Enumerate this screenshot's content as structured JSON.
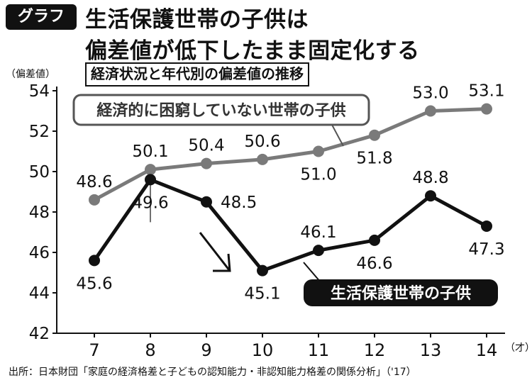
{
  "badge": "グラフ",
  "title_line1": "生活保護世帯の子供は",
  "title_line2": "偏差値が低下したまま固定化する",
  "subtitle": "経済状況と年代別の偏差値の推移",
  "y_unit": "（偏差値）",
  "x_unit": "（才）",
  "source": "出所：日本財団「家庭の経済格差と子どもの認知能力・非認知能力格差の関係分析」（'17）",
  "colors": {
    "series_gray": "#7a7a7a",
    "series_black": "#111111"
  },
  "chart_data": {
    "type": "line",
    "x": [
      7,
      8,
      9,
      10,
      11,
      12,
      13,
      14
    ],
    "ylim": [
      42,
      54
    ],
    "yticks": [
      42,
      44,
      46,
      48,
      50,
      52,
      54
    ],
    "grid": false,
    "series": [
      {
        "name": "経済的に困窮していない世帯の子供",
        "values": [
          48.6,
          50.1,
          50.4,
          50.6,
          51.0,
          51.8,
          53.0,
          53.1
        ],
        "label_pos": [
          "above",
          "above",
          "above",
          "above",
          "below",
          "below",
          "above",
          "above"
        ]
      },
      {
        "name": "生活保護世帯の子供",
        "values": [
          45.6,
          49.6,
          48.5,
          45.1,
          46.1,
          46.6,
          48.8,
          47.3
        ],
        "label_pos": [
          "below",
          "below",
          "right",
          "below",
          "above",
          "below",
          "above",
          "below"
        ]
      }
    ]
  }
}
